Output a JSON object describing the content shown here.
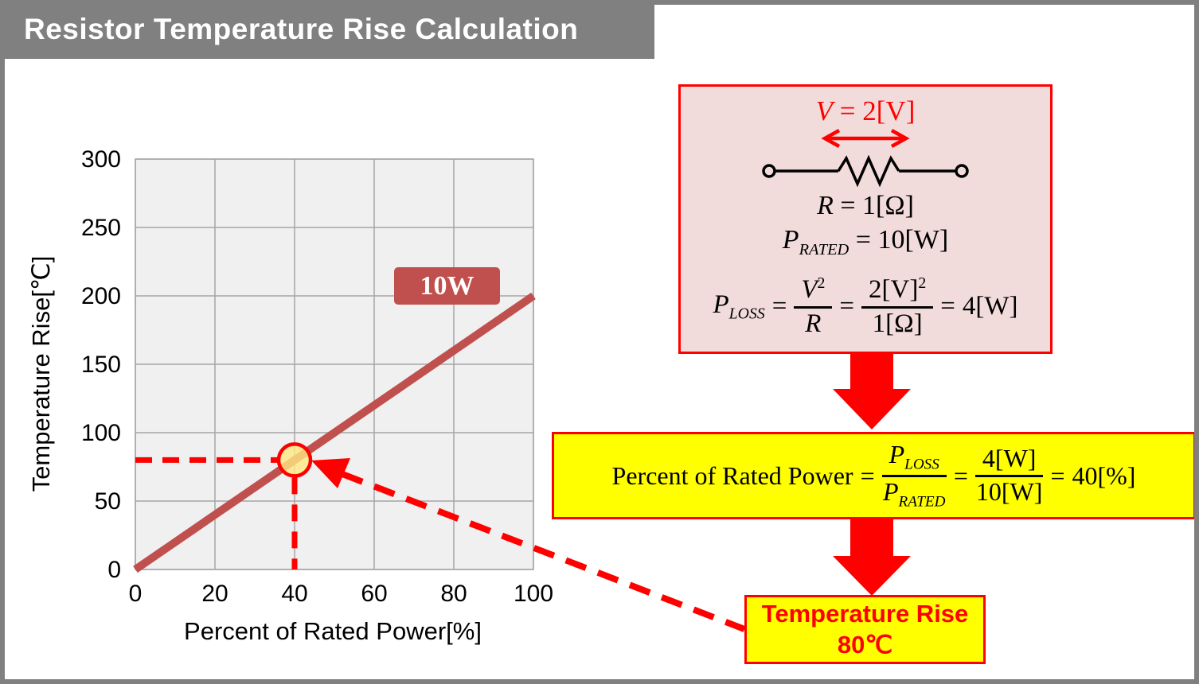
{
  "title": "Resistor Temperature Rise Calculation",
  "colors": {
    "frame_gray": "#808080",
    "accent_red": "#ff0000",
    "series_brown": "#c0504d",
    "pink_bg": "#f2dcdb",
    "yellow_bg": "#ffff00",
    "plot_bg": "#f0f0f0",
    "grid_gray": "#a6a6a6"
  },
  "chart_data": {
    "type": "line",
    "title": "",
    "xlabel": "Percent of Rated Power[%]",
    "ylabel": "Temperature Rise[℃]",
    "xlim": [
      0,
      100
    ],
    "ylim": [
      0,
      300
    ],
    "x_ticks": [
      0,
      20,
      40,
      60,
      80,
      100
    ],
    "y_ticks": [
      0,
      50,
      100,
      150,
      200,
      250,
      300
    ],
    "grid": true,
    "legend_position": "inline-label",
    "series": [
      {
        "name": "10W",
        "x": [
          0,
          100
        ],
        "y": [
          0,
          200
        ]
      }
    ],
    "highlight_point": {
      "x": 40,
      "y": 80
    }
  },
  "circuit": {
    "eq": "=",
    "voltage_var": "V",
    "voltage_rest": "= 2[V]",
    "resistance_var": "R",
    "resistance_rest": "= 1[Ω]",
    "rated_var": "P",
    "rated_sub": "RATED",
    "rated_rest": "= 10[W]",
    "loss_var": "P",
    "loss_sub": "LOSS",
    "loss_frac1_num_var": "V",
    "loss_frac1_num_sup": "2",
    "loss_frac1_den": "R",
    "loss_frac2_num": "2[V]",
    "loss_frac2_num_sup": "2",
    "loss_frac2_den": "1[Ω]",
    "loss_result": "4[W]"
  },
  "percent_box": {
    "label": "Percent of Rated Power",
    "eq": "=",
    "frac1_num_var": "P",
    "frac1_num_sub": "LOSS",
    "frac1_den_var": "P",
    "frac1_den_sub": "RATED",
    "frac2_num": "4[W]",
    "frac2_den": "10[W]",
    "result": "40[%]"
  },
  "result_box": {
    "line1": "Temperature Rise",
    "line2": "80℃"
  }
}
